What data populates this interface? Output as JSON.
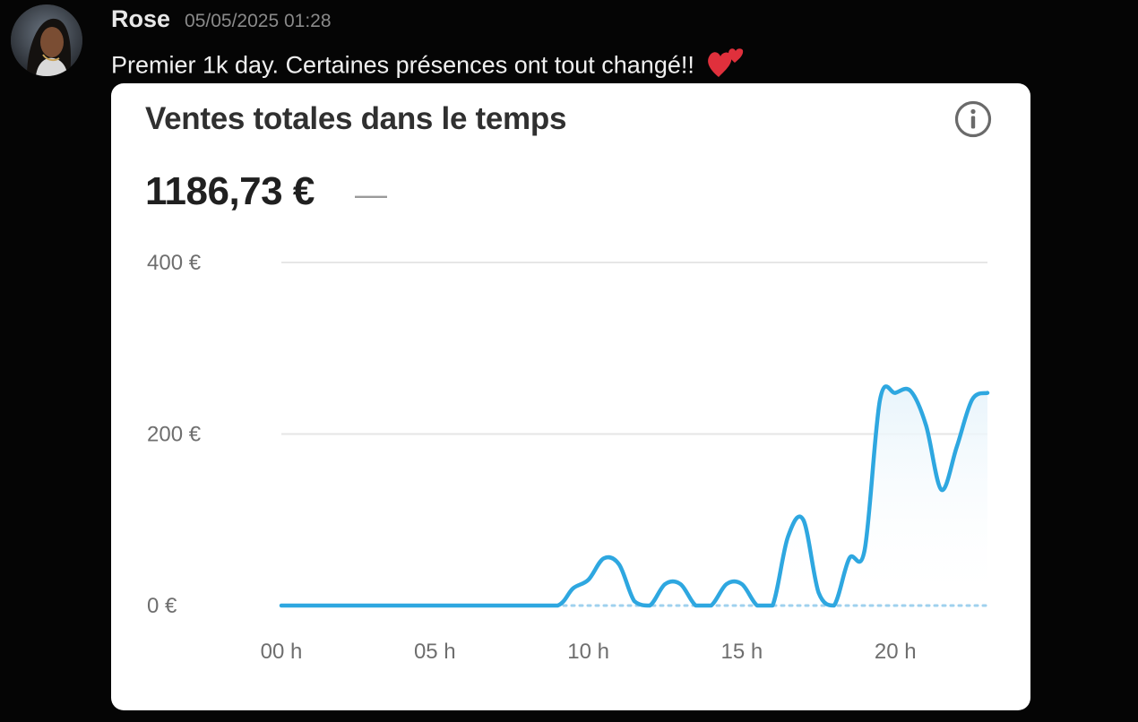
{
  "message": {
    "author": "Rose",
    "timestamp": "05/05/2025 01:28",
    "text": "Premier 1k day. Certaines présences ont tout changé!!",
    "emoji_icon": "two-hearts-icon",
    "avatar_icon": "user-avatar-photo"
  },
  "card": {
    "title": "Ventes totales dans le temps",
    "total": "1186,73 €",
    "change": "—",
    "info_icon": "info-icon"
  },
  "colors": {
    "line": "#2ea7e0",
    "comparison": "#9fd1ee",
    "fill": "#e8f4fb",
    "grid": "#e6e6e6"
  },
  "chart_data": {
    "type": "line",
    "title": "Ventes totales dans le temps",
    "xlabel": "",
    "ylabel": "",
    "x_ticks": [
      "00 h",
      "05 h",
      "10 h",
      "15 h",
      "20 h"
    ],
    "x_tick_values": [
      0,
      5,
      10,
      15,
      20
    ],
    "y_ticks": [
      "0 €",
      "200 €",
      "400 €"
    ],
    "y_tick_values": [
      0,
      200,
      400
    ],
    "xlim": [
      0,
      23
    ],
    "ylim": [
      0,
      400
    ],
    "grid": true,
    "legend": "none",
    "series": [
      {
        "x": [
          0,
          1,
          2,
          3,
          4,
          5,
          6,
          7,
          8,
          9,
          9.5,
          10,
          10.5,
          11,
          11.5,
          12,
          12.5,
          13,
          13.5,
          14,
          14.5,
          15,
          15.5,
          16,
          16.5,
          17,
          17.5,
          18,
          18.5,
          19,
          19.5,
          20,
          20.5,
          21,
          21.5,
          22,
          22.5,
          23
        ],
        "values": [
          0,
          0,
          0,
          0,
          0,
          0,
          0,
          0,
          0,
          0,
          20,
          30,
          55,
          48,
          5,
          0,
          25,
          25,
          0,
          0,
          25,
          25,
          0,
          0,
          80,
          100,
          15,
          0,
          55,
          65,
          240,
          248,
          250,
          210,
          135,
          185,
          240,
          248
        ]
      },
      {
        "x": [
          0,
          23
        ],
        "values": [
          0,
          0
        ]
      }
    ]
  }
}
